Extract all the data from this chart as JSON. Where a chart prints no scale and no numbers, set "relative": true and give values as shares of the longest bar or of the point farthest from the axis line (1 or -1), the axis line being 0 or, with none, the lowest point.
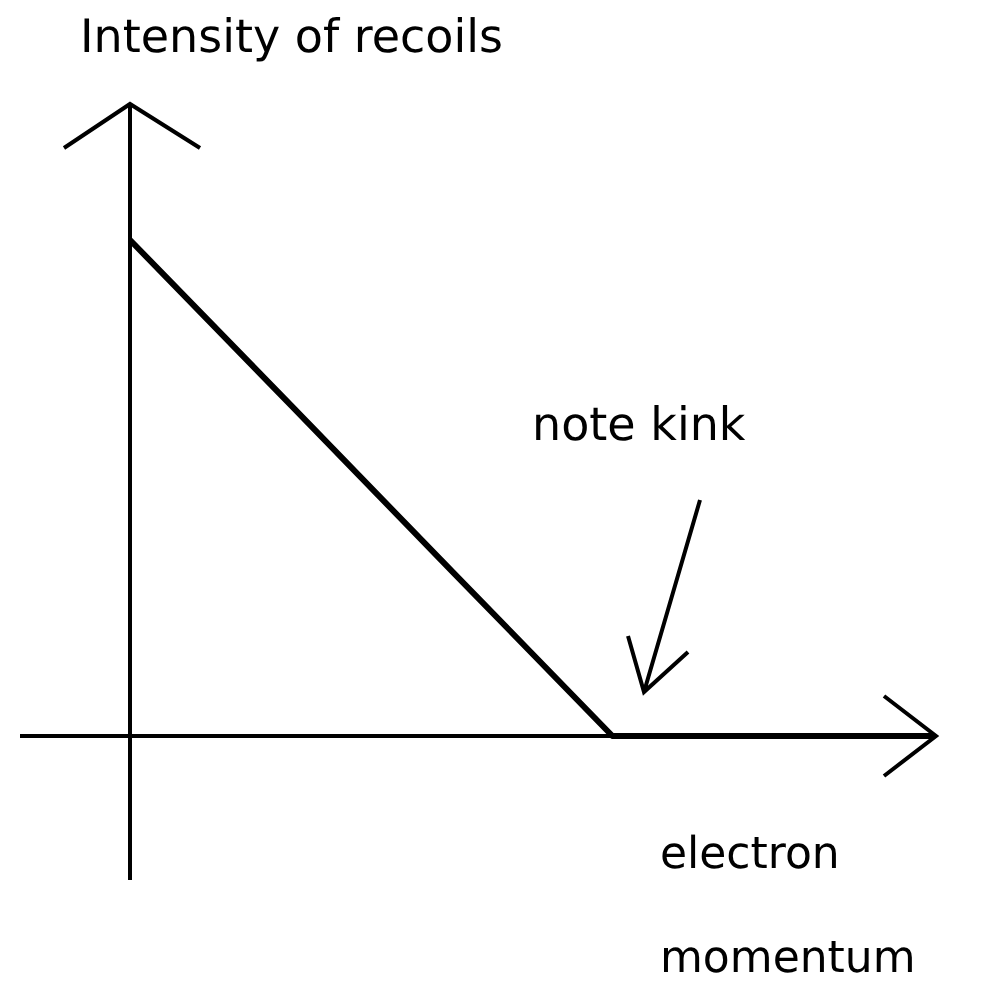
{
  "chart_data": {
    "type": "line",
    "title": "Intensity of recoils",
    "xlabel": "electron momentum",
    "annotations": [
      "note kink"
    ],
    "relative": true,
    "categories": [
      null,
      null,
      null,
      null,
      null,
      null
    ],
    "values": [
      1,
      0.667,
      0.333,
      0,
      0,
      0
    ],
    "color": "#000000",
    "marker": "none"
  }
}
